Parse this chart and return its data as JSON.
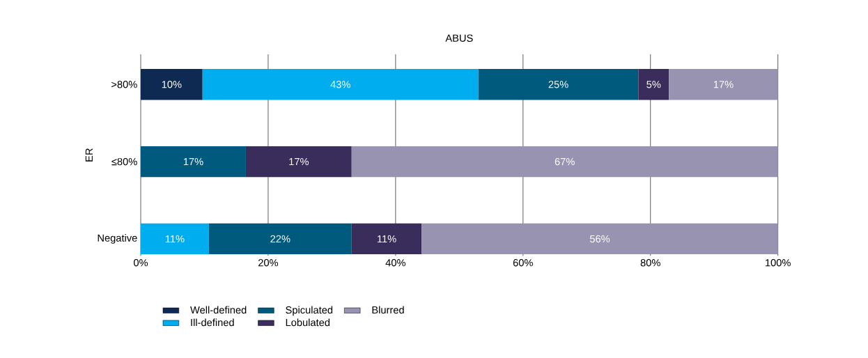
{
  "chart_data": {
    "type": "bar",
    "orientation": "horizontal",
    "stacked": true,
    "title": "ABUS",
    "ylabel": "ER",
    "categories": [
      ">80%",
      "≤80%",
      "Negative"
    ],
    "xlim": [
      0,
      100
    ],
    "xticks": [
      {
        "value": 0,
        "label": "0%"
      },
      {
        "value": 20,
        "label": "20%"
      },
      {
        "value": 40,
        "label": "40%"
      },
      {
        "value": 60,
        "label": "60%"
      },
      {
        "value": 80,
        "label": "80%"
      },
      {
        "value": 100,
        "label": "100%"
      }
    ],
    "grid": "x",
    "legend": "bottom left",
    "series": [
      {
        "name": "Well-defined",
        "color": "#0f2a52",
        "values": [
          9.7,
          null,
          null
        ],
        "value_labels": [
          "10%",
          null,
          null
        ]
      },
      {
        "name": "Ill-defined",
        "color": "#00adef",
        "values": [
          43.3,
          null,
          10.7
        ],
        "value_labels": [
          "43%",
          null,
          "11%"
        ]
      },
      {
        "name": "Spiculated",
        "color": "#005a7e",
        "values": [
          25.1,
          16.5,
          22.4
        ],
        "value_labels": [
          "25%",
          "17%",
          "22%"
        ]
      },
      {
        "name": "Lobulated",
        "color": "#3b2d5b",
        "values": [
          4.8,
          16.6,
          11.0
        ],
        "value_labels": [
          "5%",
          "17%",
          "11%"
        ]
      },
      {
        "name": "Blurred",
        "color": "#9893b1",
        "values": [
          17.1,
          66.9,
          55.9
        ],
        "value_labels": [
          "17%",
          "67%",
          "56%"
        ]
      }
    ]
  }
}
